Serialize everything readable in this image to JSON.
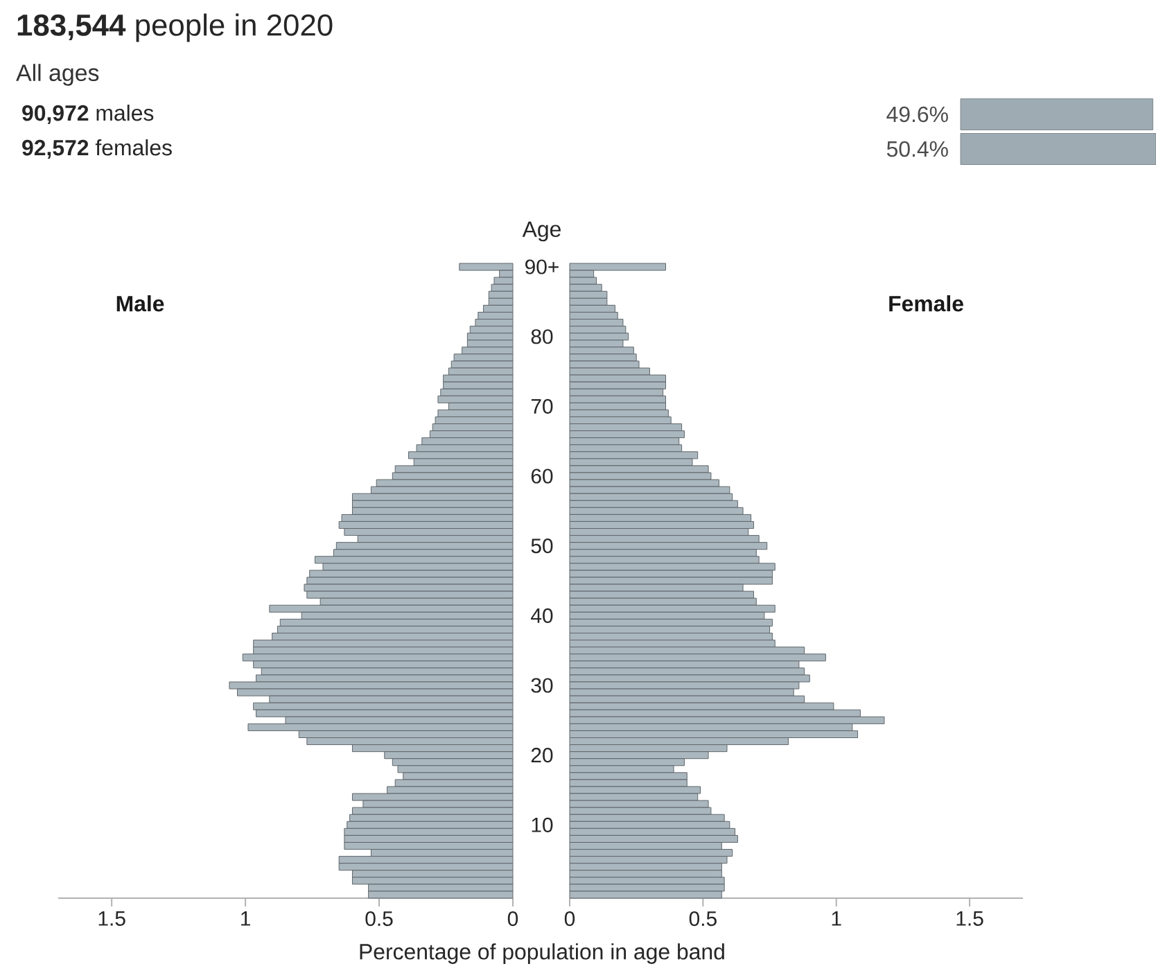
{
  "chart_data": [
    {
      "type": "bar",
      "orientation": "horizontal",
      "title": "**183,544** people in 2020",
      "subtitle": "All ages",
      "categories": [
        "**90,972** males",
        "**92,572** females"
      ],
      "values": [
        49.6,
        50.4
      ],
      "value_labels": [
        "49.6%",
        "50.4%"
      ],
      "color": "#9eabb2"
    },
    {
      "type": "bar",
      "orientation": "horizontal",
      "ylabel": "Age",
      "xlabel": "Percentage of population in age band",
      "categories": [
        "90+",
        null,
        null,
        null,
        null,
        null,
        null,
        null,
        null,
        null,
        "80",
        null,
        null,
        null,
        null,
        null,
        null,
        null,
        null,
        null,
        "70",
        null,
        null,
        null,
        null,
        null,
        null,
        null,
        null,
        null,
        "60",
        null,
        null,
        null,
        null,
        null,
        null,
        null,
        null,
        null,
        "50",
        null,
        null,
        null,
        null,
        null,
        null,
        null,
        null,
        null,
        "40",
        null,
        null,
        null,
        null,
        null,
        null,
        null,
        null,
        null,
        "30",
        null,
        null,
        null,
        null,
        null,
        null,
        null,
        null,
        null,
        "20",
        null,
        null,
        null,
        null,
        null,
        null,
        null,
        null,
        null,
        "10",
        null,
        null,
        null,
        null,
        null,
        null,
        null,
        null,
        null,
        null
      ],
      "series": [
        {
          "name": "Male",
          "color": "#abb7bf",
          "values": [
            0.2,
            0.05,
            0.07,
            0.08,
            0.09,
            0.09,
            0.11,
            0.13,
            0.14,
            0.16,
            0.17,
            0.17,
            0.19,
            0.22,
            0.23,
            0.24,
            0.26,
            0.26,
            0.27,
            0.28,
            0.24,
            0.28,
            0.29,
            0.3,
            0.31,
            0.34,
            0.36,
            0.39,
            0.37,
            0.44,
            0.45,
            0.51,
            0.53,
            0.6,
            0.6,
            0.6,
            0.64,
            0.65,
            0.63,
            0.58,
            0.66,
            0.67,
            0.74,
            0.71,
            0.76,
            0.77,
            0.78,
            0.77,
            0.72,
            0.91,
            0.79,
            0.87,
            0.88,
            0.9,
            0.97,
            0.97,
            1.01,
            0.97,
            0.94,
            0.96,
            1.06,
            1.03,
            0.91,
            0.97,
            0.96,
            0.85,
            0.99,
            0.8,
            0.77,
            0.6,
            0.48,
            0.45,
            0.43,
            0.41,
            0.44,
            0.47,
            0.6,
            0.56,
            0.6,
            0.61,
            0.62,
            0.63,
            0.63,
            0.63,
            0.53,
            0.65,
            0.65,
            0.6,
            0.6,
            0.54,
            0.54
          ]
        }
      ],
      "xlim": [
        1.7,
        0
      ],
      "xticks": [
        0,
        0.5,
        1,
        1.5
      ]
    },
    {
      "type": "bar",
      "orientation": "horizontal",
      "tick_labels": "x",
      "series": [
        {
          "name": "Female",
          "color": "#abb7bf",
          "values": [
            0.36,
            0.09,
            0.1,
            0.12,
            0.14,
            0.14,
            0.17,
            0.18,
            0.2,
            0.21,
            0.22,
            0.2,
            0.24,
            0.25,
            0.26,
            0.3,
            0.36,
            0.36,
            0.35,
            0.36,
            0.36,
            0.37,
            0.38,
            0.42,
            0.43,
            0.41,
            0.42,
            0.48,
            0.46,
            0.52,
            0.53,
            0.56,
            0.6,
            0.61,
            0.63,
            0.65,
            0.68,
            0.69,
            0.67,
            0.71,
            0.74,
            0.7,
            0.71,
            0.77,
            0.76,
            0.76,
            0.65,
            0.69,
            0.7,
            0.77,
            0.73,
            0.76,
            0.75,
            0.76,
            0.77,
            0.88,
            0.96,
            0.86,
            0.88,
            0.9,
            0.86,
            0.84,
            0.88,
            0.99,
            1.09,
            1.18,
            1.06,
            1.08,
            0.82,
            0.59,
            0.52,
            0.43,
            0.39,
            0.44,
            0.44,
            0.49,
            0.48,
            0.52,
            0.53,
            0.58,
            0.6,
            0.62,
            0.63,
            0.57,
            0.61,
            0.59,
            0.57,
            0.57,
            0.58,
            0.58,
            0.57
          ]
        }
      ],
      "xlim": [
        0,
        1.7
      ],
      "xticks": [
        0,
        0.5,
        1,
        1.5
      ]
    }
  ]
}
